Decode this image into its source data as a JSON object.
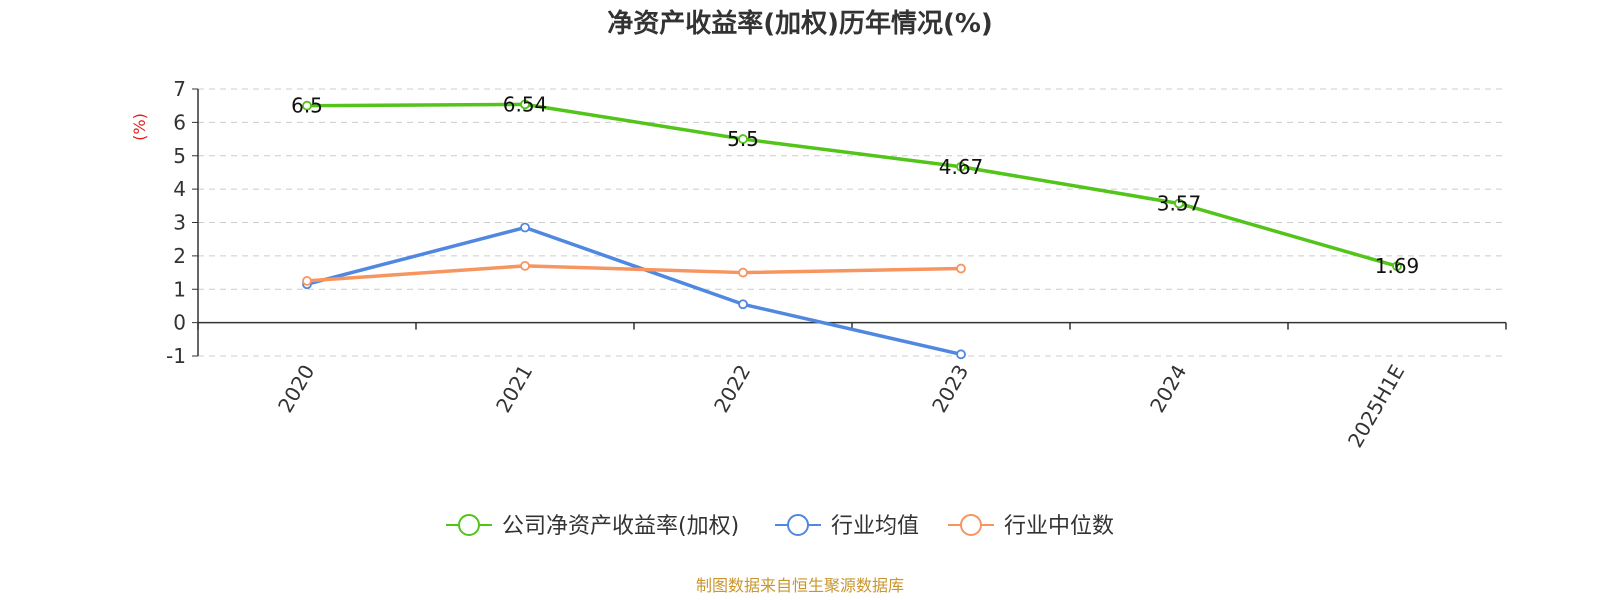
{
  "chart_data": {
    "type": "line",
    "title": "净资产收益率(加权)历年情况(%)",
    "ylabel": "(%)",
    "categories": [
      "2020",
      "2021",
      "2022",
      "2023",
      "2024",
      "2025H1E"
    ],
    "ylim": [
      -1,
      7
    ],
    "yticks": [
      -1,
      0,
      1,
      2,
      3,
      4,
      5,
      6,
      7
    ],
    "grid": true,
    "legend_position": "bottom",
    "series": [
      {
        "name": "公司净资产收益率(加权)",
        "color": "#52c41a",
        "values": [
          6.5,
          6.54,
          5.5,
          4.67,
          3.57,
          1.69
        ],
        "labels": [
          "6.5",
          "6.54",
          "5.5",
          "4.67",
          "3.57",
          "1.69"
        ],
        "show_labels": true
      },
      {
        "name": "行业均值",
        "color": "#5087e0",
        "values": [
          1.15,
          2.85,
          0.55,
          -0.95,
          null,
          null
        ],
        "show_labels": false
      },
      {
        "name": "行业中位数",
        "color": "#f79560",
        "values": [
          1.25,
          1.7,
          1.5,
          1.62,
          null,
          null
        ],
        "show_labels": false
      }
    ]
  },
  "source": "制图数据来自恒生聚源数据库"
}
